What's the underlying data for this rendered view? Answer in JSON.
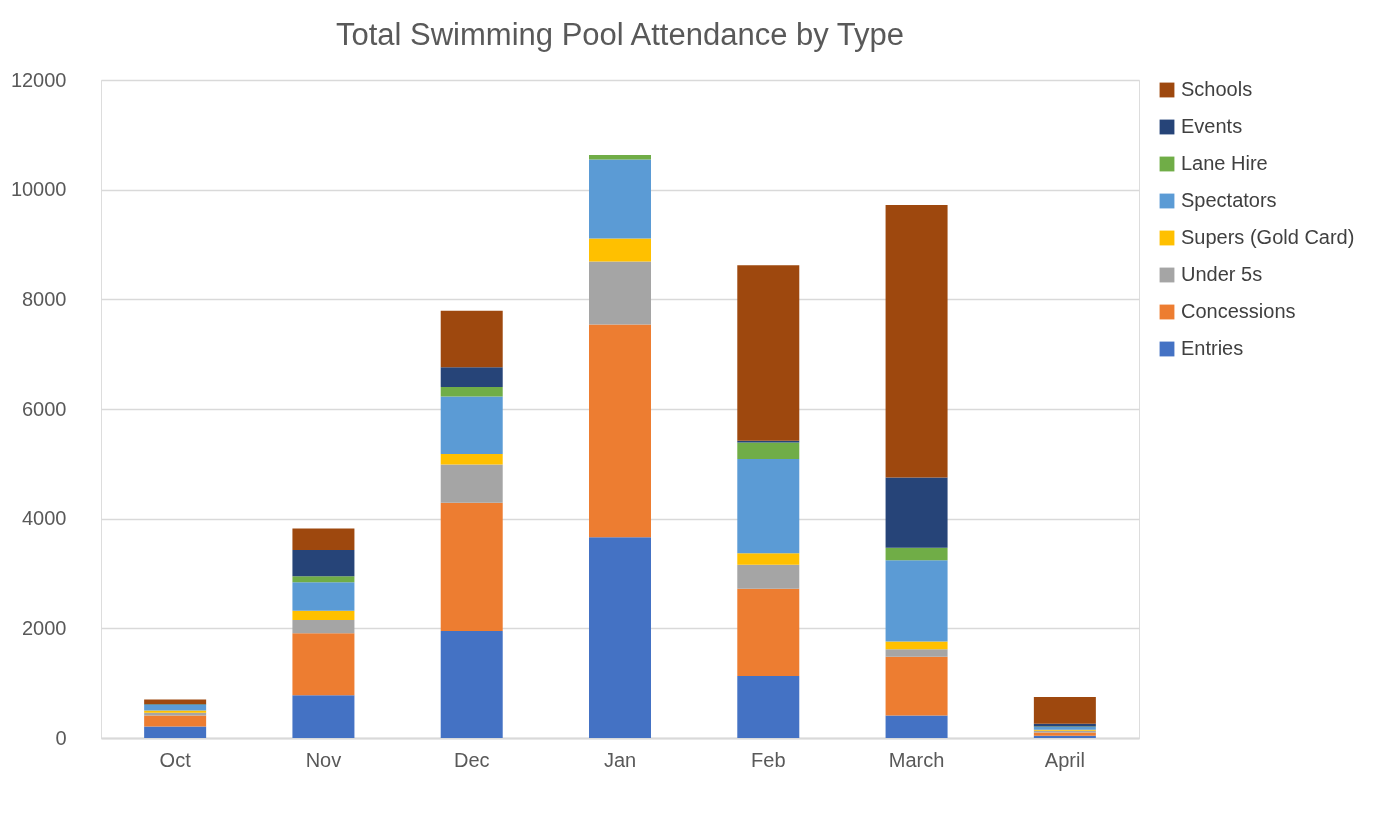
{
  "chart_data": {
    "type": "bar",
    "title": "Total Swimming Pool Attendance by Type",
    "categories": [
      "Oct",
      "Nov",
      "Dec",
      "Jan",
      "Feb",
      "March",
      "April"
    ],
    "stacked": true,
    "series": [
      {
        "name": "Entries",
        "color": "#4472c4",
        "values": [
          210,
          780,
          1950,
          3660,
          1130,
          410,
          40
        ]
      },
      {
        "name": "Concessions",
        "color": "#ed7d31",
        "values": [
          200,
          1130,
          2340,
          3880,
          1590,
          1070,
          60
        ]
      },
      {
        "name": "Under 5s",
        "color": "#a5a5a5",
        "values": [
          50,
          240,
          700,
          1150,
          440,
          140,
          30
        ]
      },
      {
        "name": "Supers (Gold Card)",
        "color": "#ffc000",
        "values": [
          40,
          170,
          190,
          420,
          210,
          140,
          20
        ]
      },
      {
        "name": "Spectators",
        "color": "#5b9bd5",
        "values": [
          100,
          520,
          1050,
          1440,
          1720,
          1480,
          50
        ]
      },
      {
        "name": "Lane Hire",
        "color": "#70ad47",
        "values": [
          10,
          110,
          170,
          80,
          300,
          230,
          10
        ]
      },
      {
        "name": "Events",
        "color": "#264478",
        "values": [
          10,
          480,
          360,
          0,
          30,
          1280,
          50
        ]
      },
      {
        "name": "Schools",
        "color": "#9e480e",
        "values": [
          80,
          390,
          1030,
          0,
          3200,
          4970,
          490
        ]
      }
    ],
    "ylim": [
      0,
      12000
    ],
    "yticks": [
      0,
      2000,
      4000,
      6000,
      8000,
      10000,
      12000
    ],
    "grid": "y",
    "legend": "right"
  }
}
